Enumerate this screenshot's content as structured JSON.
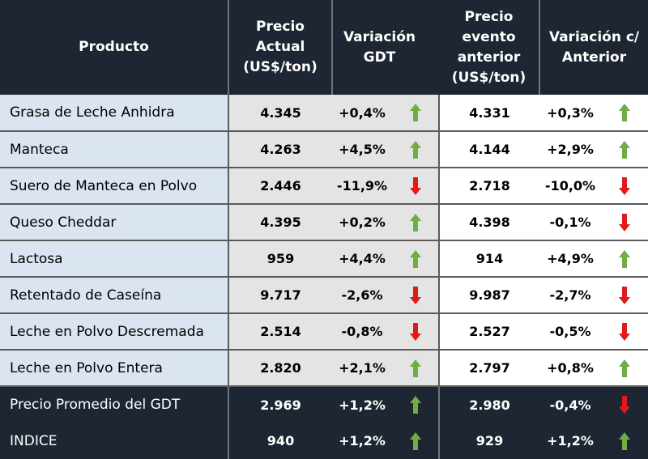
{
  "headers": {
    "producto": "Producto",
    "precio_actual": "Precio Actual (US$/ton)",
    "variacion_gdt": "Variación GDT",
    "precio_anterior": "Precio evento anterior (US$/ton)",
    "variacion_anterior": "Variación c/ Anterior"
  },
  "colors": {
    "up": "#70ad47",
    "down": "#e01a1a",
    "header_bg": "#1d2632",
    "name_bg": "#dbe5f1",
    "current_bg": "#e4e4e4"
  },
  "rows": [
    {
      "producto": "Grasa de Leche Anhidra",
      "precio_actual": "4.345",
      "variacion_gdt": "+0,4%",
      "dir_gdt": "up",
      "precio_anterior": "4.331",
      "variacion_anterior": "+0,3%",
      "dir_anterior": "up"
    },
    {
      "producto": "Manteca",
      "precio_actual": "4.263",
      "variacion_gdt": "+4,5%",
      "dir_gdt": "up",
      "precio_anterior": "4.144",
      "variacion_anterior": "+2,9%",
      "dir_anterior": "up"
    },
    {
      "producto": "Suero de Manteca en Polvo",
      "precio_actual": "2.446",
      "variacion_gdt": "-11,9%",
      "dir_gdt": "down",
      "precio_anterior": "2.718",
      "variacion_anterior": "-10,0%",
      "dir_anterior": "down"
    },
    {
      "producto": "Queso Cheddar",
      "precio_actual": "4.395",
      "variacion_gdt": "+0,2%",
      "dir_gdt": "up",
      "precio_anterior": "4.398",
      "variacion_anterior": "-0,1%",
      "dir_anterior": "down"
    },
    {
      "producto": "Lactosa",
      "precio_actual": "959",
      "variacion_gdt": "+4,4%",
      "dir_gdt": "up",
      "precio_anterior": "914",
      "variacion_anterior": "+4,9%",
      "dir_anterior": "up"
    },
    {
      "producto": "Retentado de Caseína",
      "precio_actual": "9.717",
      "variacion_gdt": "-2,6%",
      "dir_gdt": "down",
      "precio_anterior": "9.987",
      "variacion_anterior": "-2,7%",
      "dir_anterior": "down"
    },
    {
      "producto": "Leche en Polvo Descremada",
      "precio_actual": "2.514",
      "variacion_gdt": "-0,8%",
      "dir_gdt": "down",
      "precio_anterior": "2.527",
      "variacion_anterior": "-0,5%",
      "dir_anterior": "down"
    },
    {
      "producto": "Leche en Polvo Entera",
      "precio_actual": "2.820",
      "variacion_gdt": "+2,1%",
      "dir_gdt": "up",
      "precio_anterior": "2.797",
      "variacion_anterior": "+0,8%",
      "dir_anterior": "up"
    }
  ],
  "footer": [
    {
      "producto": "Precio Promedio del GDT",
      "precio_actual": "2.969",
      "variacion_gdt": "+1,2%",
      "dir_gdt": "up",
      "precio_anterior": "2.980",
      "variacion_anterior": "-0,4%",
      "dir_anterior": "down"
    },
    {
      "producto": "INDICE",
      "precio_actual": "940",
      "variacion_gdt": "+1,2%",
      "dir_gdt": "up",
      "precio_anterior": "929",
      "variacion_anterior": "+1,2%",
      "dir_anterior": "up"
    }
  ]
}
